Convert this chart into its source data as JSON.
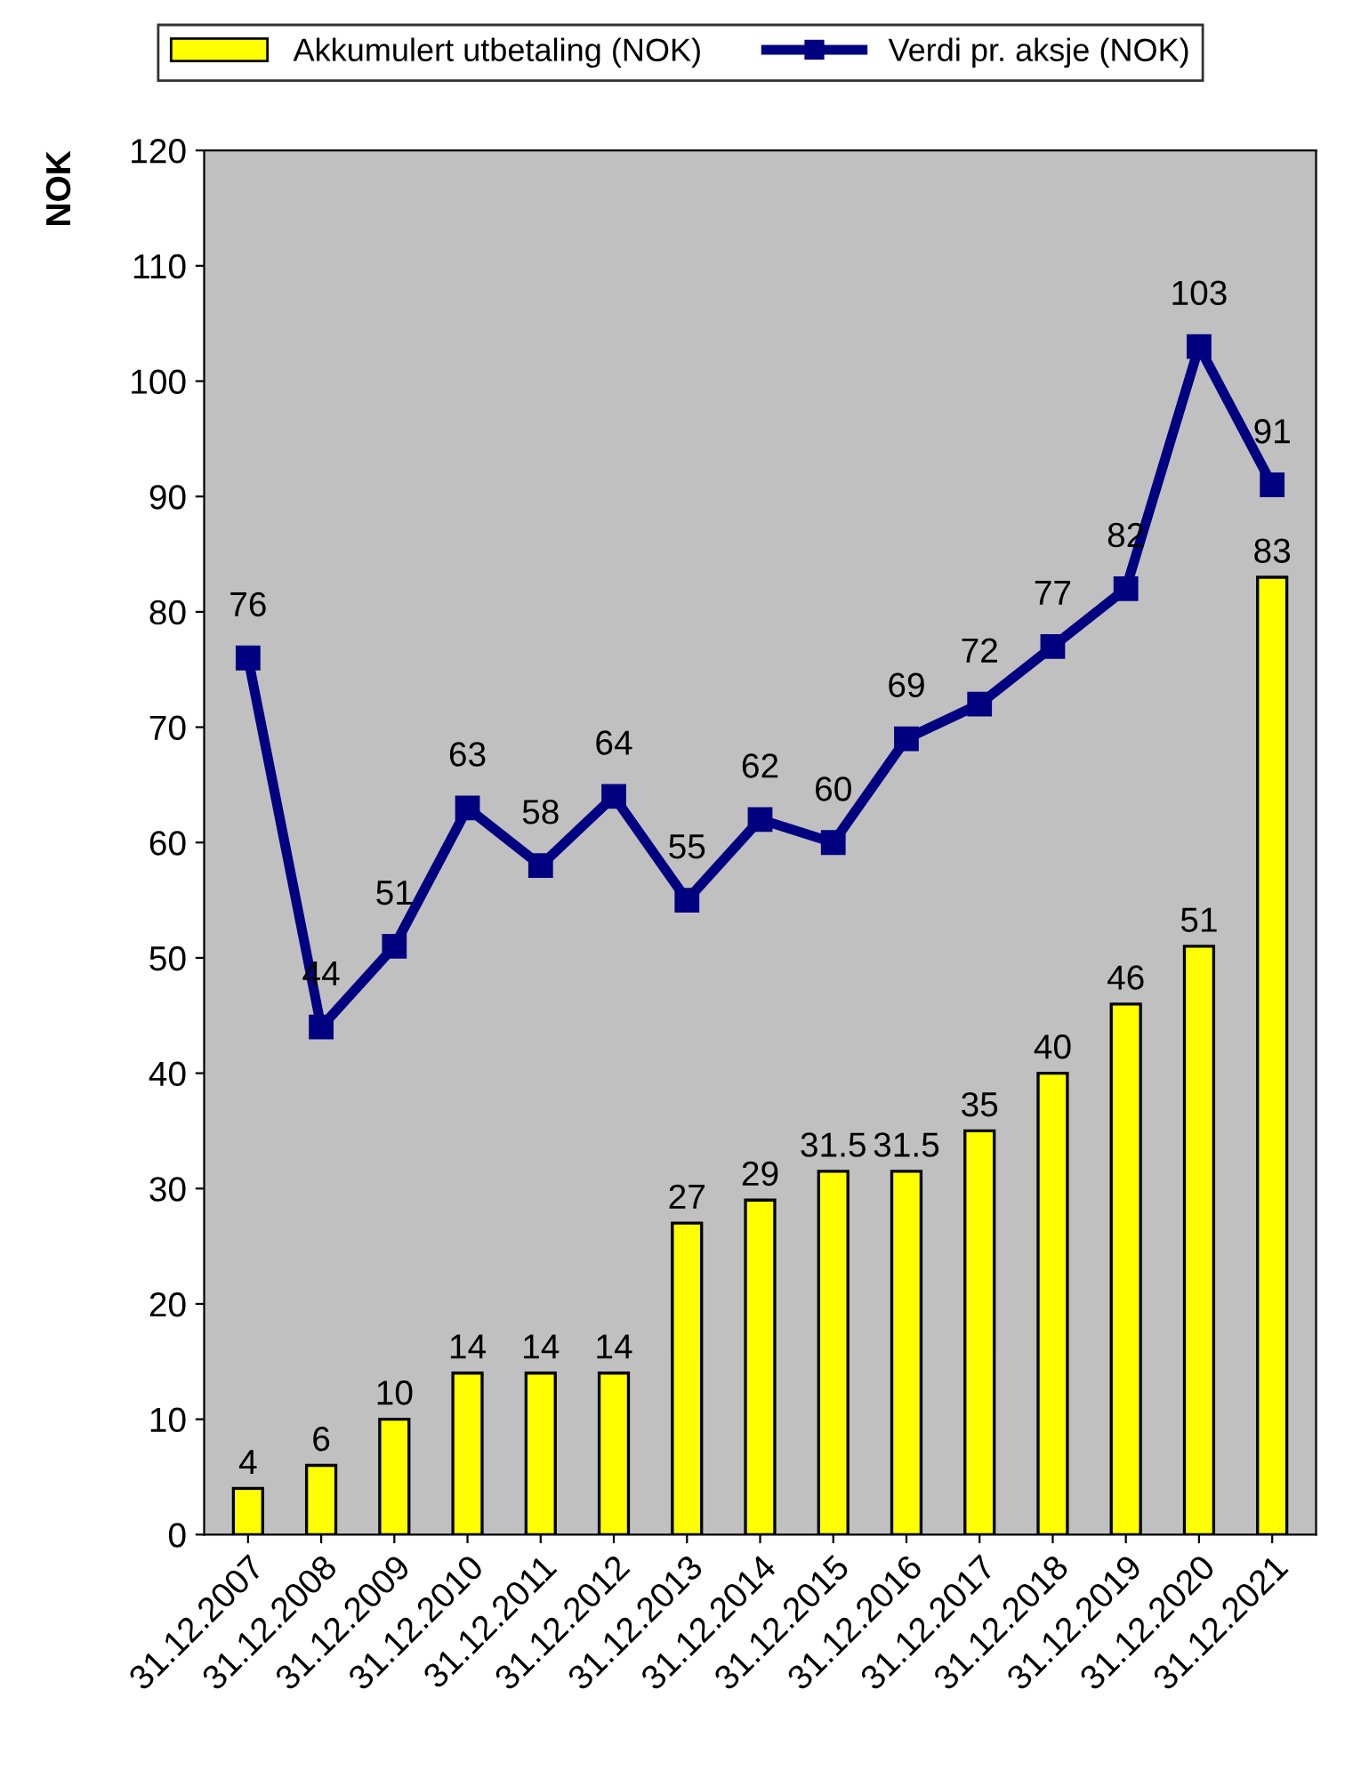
{
  "chart_data": {
    "type": "bar",
    "ylabel": "NOK",
    "categories": [
      "31.12.2007",
      "31.12.2008",
      "31.12.2009",
      "31.12.2010",
      "31.12.2011",
      "31.12.2012",
      "31.12.2013",
      "31.12.2014",
      "31.12.2015",
      "31.12.2016",
      "31.12.2017",
      "31.12.2018",
      "31.12.2019",
      "31.12.2020",
      "31.12.2021"
    ],
    "series": [
      {
        "name": "Akkumulert utbetaling (NOK)",
        "color": "#ffff00",
        "values": [
          4,
          6,
          10,
          14,
          14,
          14,
          27,
          29,
          31.5,
          31.5,
          35,
          40,
          46,
          51,
          83
        ]
      },
      {
        "name": "Verdi pr. aksje (NOK)",
        "type": "line",
        "color": "#000080",
        "marker": "square",
        "values": [
          76,
          44,
          51,
          63,
          58,
          64,
          55,
          62,
          60,
          69,
          72,
          77,
          82,
          103,
          91
        ]
      }
    ],
    "ylim": [
      0,
      120
    ],
    "yticks": [
      0,
      10,
      20,
      30,
      40,
      50,
      60,
      70,
      80,
      90,
      100,
      110,
      120
    ],
    "grid": false,
    "legend": "top",
    "data_labels": true
  }
}
